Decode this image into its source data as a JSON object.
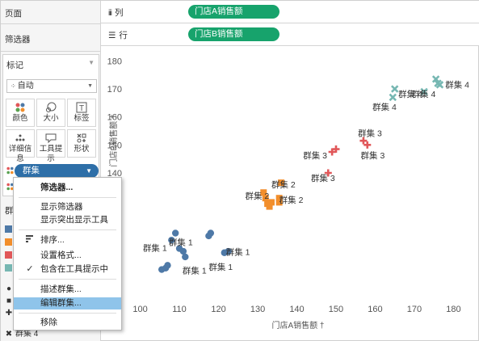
{
  "left_panel": {
    "pages_label": "页面",
    "filters_label": "筛选器",
    "marks_label": "标记",
    "mark_type": "自动",
    "buttons": [
      {
        "label": "颜色",
        "icon": "color-icon"
      },
      {
        "label": "大小",
        "icon": "size-icon"
      },
      {
        "label": "标签",
        "icon": "label-icon"
      },
      {
        "label": "详细信息",
        "icon": "detail-icon"
      },
      {
        "label": "工具提示",
        "icon": "tooltip-icon"
      },
      {
        "label": "形状",
        "icon": "shape-icon"
      }
    ],
    "cluster_pill": "群集",
    "color_legend_title": "群集",
    "color_legend": [
      {
        "label": "群",
        "color": "#4e79a7"
      },
      {
        "label": "群",
        "color": "#f28e2b"
      },
      {
        "label": "群",
        "color": "#e15759"
      },
      {
        "label": "群",
        "color": "#76b7b2"
      }
    ],
    "shape_legend": [
      {
        "glyph": "●",
        "label": "群"
      },
      {
        "glyph": "■",
        "label": "群"
      },
      {
        "glyph": "✚",
        "label": "群"
      },
      {
        "glyph": "✖",
        "label": "群集 4"
      }
    ]
  },
  "shelves": {
    "columns_label": "列",
    "columns_pill": "门店A销售额",
    "rows_label": "行",
    "rows_pill": "门店B销售额"
  },
  "context_menu": {
    "items": [
      "筛选器...",
      "显示筛选器",
      "显示突出显示工具",
      "排序...",
      "设置格式...",
      "包含在工具提示中",
      "描述群集...",
      "编辑群集...",
      "移除"
    ]
  },
  "chart_data": {
    "type": "scatter",
    "xlabel": "门店A销售额",
    "ylabel": "门店B销售额",
    "xlim": [
      97,
      183
    ],
    "ylim": [
      97,
      183
    ],
    "x_ticks": [
      100,
      110,
      120,
      130,
      140,
      150,
      160,
      170,
      180
    ],
    "y_ticks": [
      100,
      110,
      120,
      130,
      140,
      150,
      160,
      170,
      180
    ],
    "grid": false,
    "series": [
      {
        "name": "群集 1",
        "shape": "circle",
        "color": "#4e79a7",
        "points": [
          [
            105.5,
            105.5
          ],
          [
            106.5,
            106
          ],
          [
            107,
            107
          ],
          [
            108,
            116
          ],
          [
            109,
            118.5
          ],
          [
            110,
            113
          ],
          [
            111,
            112
          ],
          [
            111.5,
            110
          ],
          [
            117.5,
            117.5
          ],
          [
            118,
            118.5
          ],
          [
            121.5,
            111.5
          ],
          [
            122.5,
            112
          ]
        ]
      },
      {
        "name": "群集 2",
        "shape": "square",
        "color": "#f28e2b",
        "points": [
          [
            131.5,
            133
          ],
          [
            132,
            131
          ],
          [
            132.5,
            129
          ],
          [
            133,
            128
          ],
          [
            133.5,
            129.5
          ],
          [
            135.5,
            131
          ],
          [
            136,
            136.5
          ],
          [
            135.5,
            129.5
          ]
        ]
      },
      {
        "name": "群集 3",
        "shape": "plus",
        "color": "#e15759",
        "points": [
          [
            148,
            140
          ],
          [
            149,
            147.5
          ],
          [
            150,
            148.5
          ],
          [
            157,
            151.5
          ],
          [
            158,
            150
          ]
        ]
      },
      {
        "name": "群集 4",
        "shape": "cross",
        "color": "#76b7b2",
        "points": [
          [
            164.5,
            167
          ],
          [
            165,
            170
          ],
          [
            172.5,
            169
          ],
          [
            175.5,
            173.5
          ],
          [
            176,
            172
          ],
          [
            176.5,
            171.5
          ]
        ]
      }
    ],
    "annotations": [
      {
        "text": "群集 1",
        "x": 107.3,
        "y": 115.3
      },
      {
        "text": "群集 1",
        "x": 100.7,
        "y": 113.3
      },
      {
        "text": "群集 1",
        "x": 121.9,
        "y": 111.9
      },
      {
        "text": "群集 1",
        "x": 110.8,
        "y": 105.2
      },
      {
        "text": "群集 1",
        "x": 117.5,
        "y": 106.5
      },
      {
        "text": "群集 2",
        "x": 133.5,
        "y": 135.9
      },
      {
        "text": "群集 2",
        "x": 126.8,
        "y": 131.9
      },
      {
        "text": "群集 2",
        "x": 135.5,
        "y": 130.5
      },
      {
        "text": "群集 3",
        "x": 155.6,
        "y": 154.3
      },
      {
        "text": "群集 3",
        "x": 141.6,
        "y": 146.3
      },
      {
        "text": "群集 3",
        "x": 143.6,
        "y": 138.3
      },
      {
        "text": "群集 3",
        "x": 156.3,
        "y": 146.3
      },
      {
        "text": "群集 4",
        "x": 159.3,
        "y": 163.6
      },
      {
        "text": "群集 4",
        "x": 165.9,
        "y": 168.3
      },
      {
        "text": "群集 4",
        "x": 177.9,
        "y": 171.6
      },
      {
        "text": "群集 4",
        "x": 169.3,
        "y": 168.3
      }
    ]
  }
}
